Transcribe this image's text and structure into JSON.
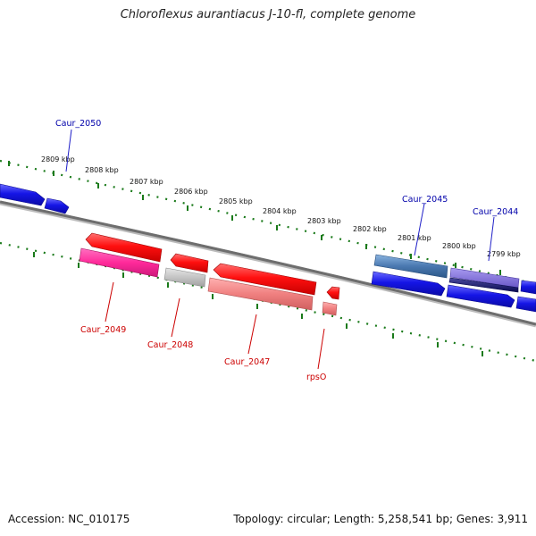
{
  "title": "Chloroflexus aurantiacus J-10-fl, complete genome",
  "footer": {
    "accession": "Accession: NC_010175",
    "info": "Topology: circular; Length: 5,258,541 bp; Genes: 3,911"
  },
  "colors": {
    "axis": "#777777",
    "tick": "#1a7a1a",
    "forward": "#1515e6",
    "reverse": "#ff1a1a",
    "label_forward": "#0000aa",
    "label_reverse": "#cc0000"
  },
  "scale_labels": [
    "2809 kbp",
    "2808 kbp",
    "2807 kbp",
    "2806 kbp",
    "2805 kbp",
    "2804 kbp",
    "2803 kbp",
    "2802 kbp",
    "2801 kbp",
    "2800 kbp",
    "2799 kbp"
  ],
  "gene_labels": [
    {
      "text": "Caur_2050",
      "strand": "forward"
    },
    {
      "text": "Caur_2045",
      "strand": "forward"
    },
    {
      "text": "Caur_2044",
      "strand": "forward"
    },
    {
      "text": "Caur_2049",
      "strand": "reverse"
    },
    {
      "text": "Caur_2048",
      "strand": "reverse"
    },
    {
      "text": "Caur_2047",
      "strand": "reverse"
    },
    {
      "text": "rpsO",
      "strand": "reverse"
    }
  ]
}
